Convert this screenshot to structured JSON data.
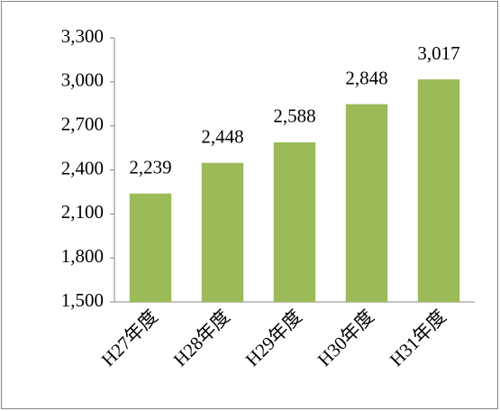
{
  "chart_data": {
    "type": "bar",
    "categories": [
      "H27年度",
      "H28年度",
      "H29年度",
      "H30年度",
      "H31年度"
    ],
    "values": [
      2239,
      2448,
      2588,
      2848,
      3017
    ],
    "value_labels": [
      "2,239",
      "2,448",
      "2,588",
      "2,848",
      "3,017"
    ],
    "color": "#9bbb59",
    "ylim": [
      1500,
      3300
    ],
    "yticks": [
      {
        "value": 1500,
        "label": "1,500"
      },
      {
        "value": 1800,
        "label": "1,800"
      },
      {
        "value": 2100,
        "label": "2,100"
      },
      {
        "value": 2400,
        "label": "2,400"
      },
      {
        "value": 2700,
        "label": "2,700"
      },
      {
        "value": 3000,
        "label": "3,000"
      },
      {
        "value": 3300,
        "label": "3,300"
      }
    ],
    "grid": false
  }
}
